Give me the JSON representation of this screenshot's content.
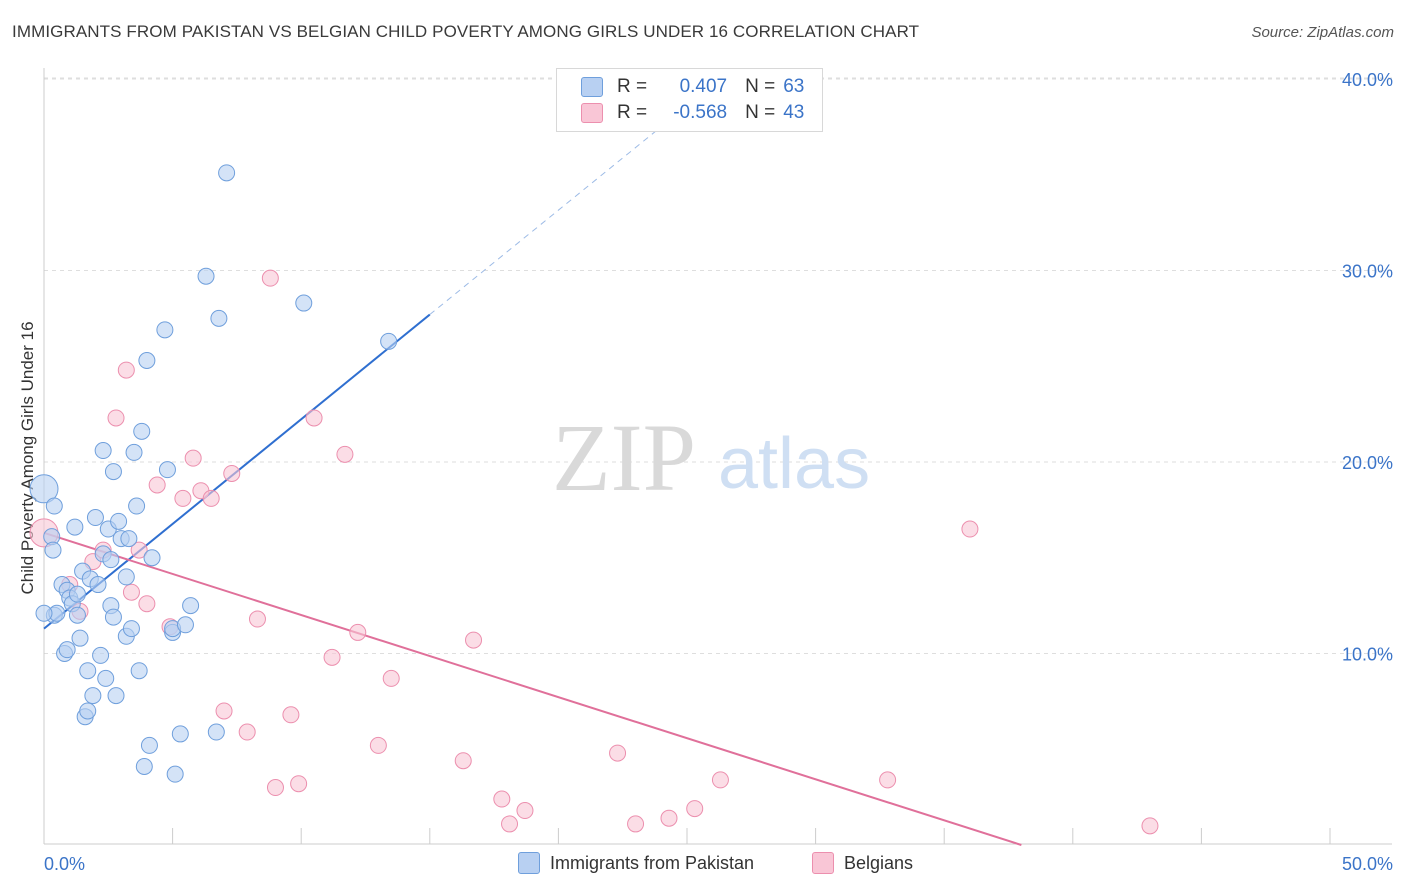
{
  "title": "IMMIGRANTS FROM PAKISTAN VS BELGIAN CHILD POVERTY AMONG GIRLS UNDER 16 CORRELATION CHART",
  "source": "Source: ZipAtlas.com",
  "watermark": {
    "zip": "ZIP",
    "atlas": "atlas"
  },
  "stats": [
    {
      "r_label": "R =",
      "r_value": "0.407",
      "n_label": "N =",
      "n_value": "63"
    },
    {
      "r_label": "R =",
      "r_value": "-0.568",
      "n_label": "N =",
      "n_value": "43"
    }
  ],
  "legend": [
    {
      "label": "Immigrants from Pakistan"
    },
    {
      "label": "Belgians"
    }
  ],
  "chart_data": {
    "type": "scatter",
    "title": "IMMIGRANTS FROM PAKISTAN VS BELGIAN CHILD POVERTY AMONG GIRLS UNDER 16 CORRELATION CHART",
    "xlabel": "",
    "ylabel": "Child Poverty Among Girls Under 16",
    "xlim": [
      0,
      50
    ],
    "ylim": [
      0,
      42
    ],
    "x_tick_labels": [
      "0.0%",
      "50.0%"
    ],
    "y_ticks": [
      10,
      20,
      30,
      40
    ],
    "y_tick_labels": [
      "10.0%",
      "20.0%",
      "30.0%",
      "40.0%"
    ],
    "colors": {
      "pakistan_fill": "#b8d0f2",
      "pakistan_stroke": "#6f9fdc",
      "pakistan_line": "#2f6fd0",
      "belgian_fill": "#f9c6d6",
      "belgian_stroke": "#ec8fae",
      "belgian_line": "#e0709a",
      "axis_text": "#3b74c8",
      "grid": "#dedede"
    },
    "series": [
      {
        "name": "Immigrants from Pakistan",
        "points": [
          [
            0.0,
            18.6
          ],
          [
            0.4,
            17.7
          ],
          [
            0.3,
            16.1
          ],
          [
            0.35,
            15.4
          ],
          [
            0.4,
            12.0
          ],
          [
            0.5,
            12.1
          ],
          [
            0.7,
            13.6
          ],
          [
            0.8,
            10.0
          ],
          [
            0.9,
            13.3
          ],
          [
            0.9,
            10.2
          ],
          [
            1.0,
            12.9
          ],
          [
            1.1,
            12.6
          ],
          [
            1.2,
            16.6
          ],
          [
            1.3,
            13.1
          ],
          [
            1.3,
            12.0
          ],
          [
            1.4,
            10.8
          ],
          [
            1.5,
            14.3
          ],
          [
            1.6,
            6.7
          ],
          [
            1.7,
            7.0
          ],
          [
            1.7,
            9.1
          ],
          [
            1.8,
            13.9
          ],
          [
            1.9,
            7.8
          ],
          [
            2.0,
            17.1
          ],
          [
            2.1,
            13.6
          ],
          [
            2.2,
            9.9
          ],
          [
            2.3,
            15.2
          ],
          [
            2.3,
            20.6
          ],
          [
            2.4,
            8.7
          ],
          [
            2.5,
            16.5
          ],
          [
            2.6,
            14.9
          ],
          [
            2.6,
            12.5
          ],
          [
            2.7,
            11.9
          ],
          [
            2.7,
            19.5
          ],
          [
            2.8,
            7.8
          ],
          [
            2.9,
            16.9
          ],
          [
            3.0,
            16.0
          ],
          [
            3.2,
            10.9
          ],
          [
            3.2,
            14.0
          ],
          [
            3.3,
            16.0
          ],
          [
            3.4,
            11.3
          ],
          [
            3.5,
            20.5
          ],
          [
            3.6,
            17.7
          ],
          [
            3.7,
            9.1
          ],
          [
            3.8,
            21.6
          ],
          [
            3.9,
            4.1
          ],
          [
            4.0,
            25.3
          ],
          [
            4.1,
            5.2
          ],
          [
            4.2,
            15.0
          ],
          [
            4.7,
            26.9
          ],
          [
            4.8,
            19.6
          ],
          [
            5.0,
            11.1
          ],
          [
            5.0,
            11.3
          ],
          [
            5.1,
            3.7
          ],
          [
            5.3,
            5.8
          ],
          [
            5.5,
            11.5
          ],
          [
            5.7,
            12.5
          ],
          [
            6.3,
            29.7
          ],
          [
            6.7,
            5.9
          ],
          [
            6.8,
            27.5
          ],
          [
            7.1,
            35.1
          ],
          [
            10.1,
            28.3
          ],
          [
            13.4,
            26.3
          ],
          [
            0.0,
            12.1
          ]
        ]
      },
      {
        "name": "Belgians",
        "points": [
          [
            0.0,
            16.3
          ],
          [
            1.0,
            13.6
          ],
          [
            1.4,
            12.2
          ],
          [
            1.9,
            14.8
          ],
          [
            2.3,
            15.4
          ],
          [
            3.4,
            13.2
          ],
          [
            2.8,
            22.3
          ],
          [
            3.2,
            24.8
          ],
          [
            3.7,
            15.4
          ],
          [
            4.0,
            12.6
          ],
          [
            4.4,
            18.8
          ],
          [
            4.9,
            11.4
          ],
          [
            5.4,
            18.1
          ],
          [
            5.8,
            20.2
          ],
          [
            6.1,
            18.5
          ],
          [
            6.5,
            18.1
          ],
          [
            7.0,
            7.0
          ],
          [
            7.3,
            19.4
          ],
          [
            7.9,
            5.9
          ],
          [
            8.3,
            11.8
          ],
          [
            8.8,
            29.6
          ],
          [
            9.0,
            3.0
          ],
          [
            9.6,
            6.8
          ],
          [
            9.9,
            3.2
          ],
          [
            10.5,
            22.3
          ],
          [
            11.2,
            9.8
          ],
          [
            11.7,
            20.4
          ],
          [
            12.2,
            11.1
          ],
          [
            13.0,
            5.2
          ],
          [
            13.5,
            8.7
          ],
          [
            16.3,
            4.4
          ],
          [
            16.7,
            10.7
          ],
          [
            17.8,
            2.4
          ],
          [
            18.1,
            1.1
          ],
          [
            18.7,
            1.8
          ],
          [
            22.3,
            4.8
          ],
          [
            23.0,
            1.1
          ],
          [
            24.3,
            1.4
          ],
          [
            25.3,
            1.9
          ],
          [
            26.3,
            3.4
          ],
          [
            32.8,
            3.4
          ],
          [
            36.0,
            16.5
          ],
          [
            43.0,
            1.0
          ]
        ]
      }
    ],
    "trend_lines": [
      {
        "name": "Immigrants from Pakistan",
        "x_start": 0.0,
        "y_start": 11.3,
        "x_end": 15.0,
        "y_end": 27.7,
        "dashed_to_x": 25.0,
        "dashed_to_y": 38.6
      },
      {
        "name": "Belgians",
        "x_start": 0.0,
        "y_start": 16.3,
        "x_end": 38.0,
        "y_end": 0.0
      }
    ]
  }
}
